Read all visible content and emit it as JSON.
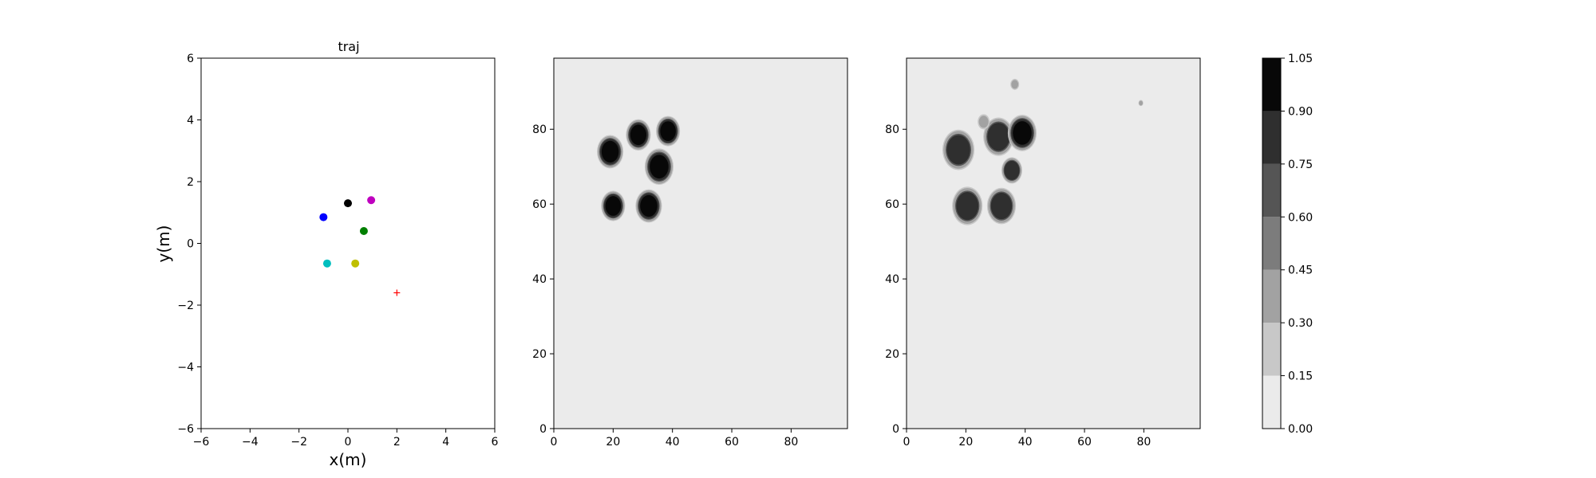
{
  "chart_data": [
    {
      "type": "scatter",
      "title": "traj",
      "xlabel": "x(m)",
      "ylabel": "y(m)",
      "xlim": [
        -6,
        6
      ],
      "ylim": [
        -6,
        6
      ],
      "xticks": [
        -6,
        -4,
        -2,
        0,
        2,
        4,
        6
      ],
      "yticks": [
        -6,
        -4,
        -2,
        0,
        2,
        4,
        6
      ],
      "grid": false,
      "points": [
        {
          "x": 0.0,
          "y": 1.3,
          "color": "#000000",
          "marker": "circle"
        },
        {
          "x": 0.95,
          "y": 1.4,
          "color": "#bf00bf",
          "marker": "circle"
        },
        {
          "x": -1.0,
          "y": 0.85,
          "color": "#0000ff",
          "marker": "circle"
        },
        {
          "x": 0.65,
          "y": 0.4,
          "color": "#007f00",
          "marker": "circle"
        },
        {
          "x": -0.85,
          "y": -0.65,
          "color": "#00bfbf",
          "marker": "circle"
        },
        {
          "x": 0.3,
          "y": -0.65,
          "color": "#bfbf00",
          "marker": "circle"
        },
        {
          "x": 2.0,
          "y": -1.6,
          "color": "#ff0000",
          "marker": "plus"
        }
      ]
    },
    {
      "type": "heatmap",
      "xlim": [
        0,
        99
      ],
      "ylim": [
        0,
        99
      ],
      "xticks": [
        0,
        20,
        40,
        60,
        80
      ],
      "yticks": [
        0,
        20,
        40,
        60,
        80
      ],
      "background_level": 0.0,
      "blobs": [
        {
          "x": 19,
          "y": 74,
          "r": 3.3,
          "level": 1.0
        },
        {
          "x": 28.5,
          "y": 78.5,
          "r": 3.1,
          "level": 1.0
        },
        {
          "x": 38.5,
          "y": 79.5,
          "r": 3.0,
          "level": 1.0
        },
        {
          "x": 35.5,
          "y": 70,
          "r": 3.6,
          "level": 1.0
        },
        {
          "x": 20,
          "y": 59.5,
          "r": 3.0,
          "level": 1.0
        },
        {
          "x": 32,
          "y": 59.5,
          "r": 3.3,
          "level": 1.0
        }
      ]
    },
    {
      "type": "heatmap",
      "xlim": [
        0,
        99
      ],
      "ylim": [
        0,
        99
      ],
      "xticks": [
        0,
        20,
        40,
        60,
        80
      ],
      "yticks": [
        0,
        20,
        40,
        60,
        80
      ],
      "background_level": 0.0,
      "blobs": [
        {
          "x": 17.5,
          "y": 74.5,
          "r": 4.0,
          "level": 0.95
        },
        {
          "x": 31,
          "y": 78,
          "r": 3.8,
          "level": 0.95
        },
        {
          "x": 39,
          "y": 79,
          "r": 3.6,
          "level": 1.0
        },
        {
          "x": 35.5,
          "y": 69,
          "r": 2.6,
          "level": 0.85
        },
        {
          "x": 20.5,
          "y": 59.5,
          "r": 3.8,
          "level": 0.95
        },
        {
          "x": 32,
          "y": 59.5,
          "r": 3.6,
          "level": 0.95
        },
        {
          "x": 26,
          "y": 82,
          "r": 1.5,
          "level": 0.35
        },
        {
          "x": 36.5,
          "y": 92,
          "r": 1.1,
          "level": 0.3
        },
        {
          "x": 79,
          "y": 87,
          "r": 0.6,
          "level": 0.3
        }
      ],
      "colorbar": {
        "levels": [
          0.0,
          0.15,
          0.3,
          0.45,
          0.6,
          0.75,
          0.9,
          1.05
        ],
        "tick_labels": [
          "0.00",
          "0.15",
          "0.30",
          "0.45",
          "0.60",
          "0.75",
          "0.90",
          "1.05"
        ],
        "colors": [
          "#ebebeb",
          "#c8c8c8",
          "#a2a2a2",
          "#7c7c7c",
          "#555555",
          "#2f2f2f",
          "#080808"
        ]
      }
    }
  ]
}
